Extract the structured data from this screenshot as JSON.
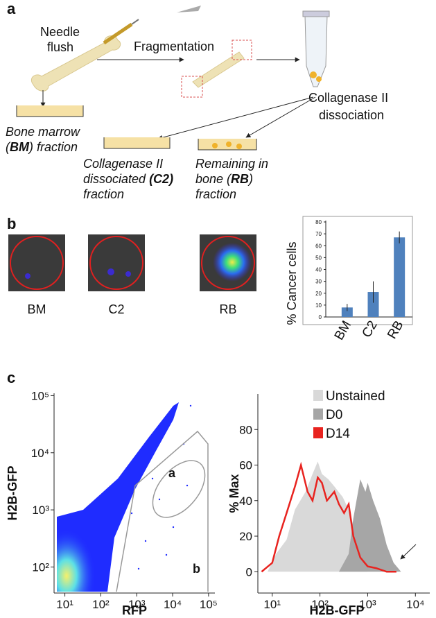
{
  "figure": {
    "panel_a": {
      "label": "a",
      "needle": [
        "Needle",
        "flush"
      ],
      "fragmentation": "Fragmentation",
      "collagenase": [
        "Collagenase II",
        "dissociation"
      ],
      "bm": {
        "line1": "Bone marrow",
        "open": "(",
        "abbr": "BM",
        "rest": ") fraction"
      },
      "c2": {
        "line1": "Collagenase II",
        "line2": "dissociated ",
        "abbr": "(C2)",
        "line3": "fraction"
      },
      "rb": {
        "line1": "Remaining in",
        "line2": "bone (",
        "abbr": "RB",
        "close": ")",
        "line3": "fraction"
      }
    },
    "panel_b": {
      "label": "b",
      "images": [
        "BM",
        "C2",
        "RB"
      ]
    },
    "panel_c": {
      "label": "c"
    }
  },
  "chart_data": [
    {
      "type": "bar",
      "ylabel": "% Cancer cells",
      "categories": [
        "BM",
        "C2",
        "RB"
      ],
      "values": [
        8,
        21,
        67
      ],
      "errors": [
        3,
        9,
        5
      ],
      "color": "#4f81bd",
      "ylim": [
        0,
        80
      ],
      "yticks": [
        0,
        10,
        20,
        30,
        40,
        50,
        60,
        70,
        80
      ]
    },
    {
      "type": "scatter",
      "xlabel": "RFP",
      "ylabel": "H2B-GFP",
      "log_x": true,
      "log_y": true,
      "xlim": [
        5,
        150000
      ],
      "ylim": [
        35,
        110000
      ],
      "xticks": [
        {
          "value": 10,
          "label": "10¹"
        },
        {
          "value": 100,
          "label": "10²"
        },
        {
          "value": 1000,
          "label": "10³"
        },
        {
          "value": 10000,
          "label": "10⁴"
        },
        {
          "value": 100000,
          "label": "10⁵"
        }
      ],
      "yticks": [
        {
          "value": 100,
          "label": "10²"
        },
        {
          "value": 1000,
          "label": "10³"
        },
        {
          "value": 10000,
          "label": "10⁴"
        },
        {
          "value": 100000,
          "label": "10⁵"
        }
      ],
      "gates": [
        "a",
        "b"
      ]
    },
    {
      "type": "area",
      "xlabel": "H2B-GFP",
      "ylabel": "% Max",
      "log_x": true,
      "xlim": [
        5,
        20000
      ],
      "ylim": [
        -12,
        100
      ],
      "xticks": [
        {
          "value": 10,
          "label": "10¹"
        },
        {
          "value": 100,
          "label": "10²"
        },
        {
          "value": 1000,
          "label": "10³"
        },
        {
          "value": 10000,
          "label": "10⁴"
        }
      ],
      "yticks": [
        0,
        20,
        40,
        60,
        80
      ],
      "series": [
        {
          "name": "Unstained",
          "color": "#d9d9d9",
          "fill": true,
          "x": [
            8,
            12,
            20,
            30,
            50,
            70,
            90,
            110,
            150,
            200,
            300,
            400,
            600,
            800,
            1000
          ],
          "values": [
            0,
            10,
            18,
            35,
            45,
            55,
            62,
            55,
            52,
            48,
            42,
            35,
            20,
            5,
            0
          ]
        },
        {
          "name": "D0",
          "color": "#a6a6a6",
          "fill": true,
          "x": [
            250,
            400,
            500,
            700,
            900,
            1000,
            1300,
            1800,
            2500,
            3500,
            5000
          ],
          "values": [
            0,
            10,
            30,
            52,
            45,
            50,
            40,
            30,
            15,
            5,
            0
          ]
        },
        {
          "name": "D14",
          "color": "#e8231f",
          "fill": false,
          "x": [
            6,
            10,
            14,
            20,
            30,
            40,
            55,
            70,
            90,
            110,
            140,
            200,
            250,
            320,
            400,
            500,
            700,
            1000,
            1500,
            2500,
            4000
          ],
          "values": [
            0,
            5,
            20,
            33,
            48,
            60,
            45,
            40,
            53,
            50,
            40,
            45,
            38,
            33,
            38,
            20,
            8,
            3,
            2,
            0,
            0
          ]
        }
      ]
    }
  ]
}
